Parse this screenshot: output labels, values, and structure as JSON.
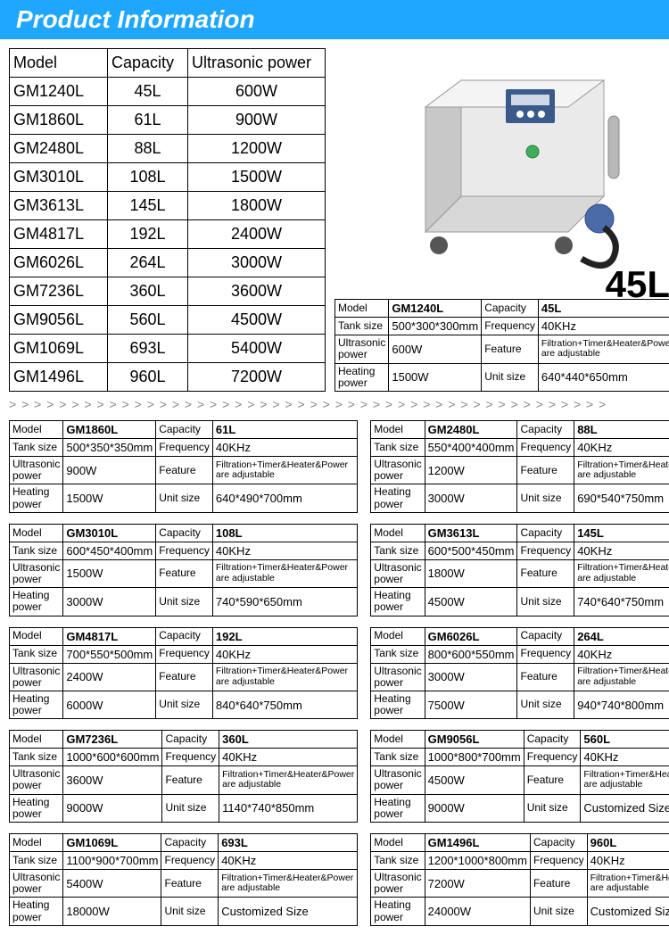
{
  "banner": {
    "title": "Product Information"
  },
  "colors": {
    "banner_bg": "#1fa6ff",
    "banner_text": "#ffffff",
    "border": "#000000"
  },
  "main_table": {
    "columns": [
      "Model",
      "Capacity",
      "Ultrasonic power"
    ],
    "col_widths": [
      "110px",
      "90px",
      "auto"
    ],
    "rows": [
      [
        "GM1240L",
        "45L",
        "600W"
      ],
      [
        "GM1860L",
        "61L",
        "900W"
      ],
      [
        "GM2480L",
        "88L",
        "1200W"
      ],
      [
        "GM3010L",
        "108L",
        "1500W"
      ],
      [
        "GM3613L",
        "145L",
        "1800W"
      ],
      [
        "GM4817L",
        "192L",
        "2400W"
      ],
      [
        "GM6026L",
        "264L",
        "3000W"
      ],
      [
        "GM7236L",
        "360L",
        "3600W"
      ],
      [
        "GM9056L",
        "560L",
        "4500W"
      ],
      [
        "GM1069L",
        "693L",
        "5400W"
      ],
      [
        "GM1496L",
        "960L",
        "7200W"
      ]
    ]
  },
  "featured": {
    "capacity_label": "45L",
    "spec": {
      "model": "GM1240L",
      "capacity": "45L",
      "tank_size": "500*300*300mm",
      "frequency": "40KHz",
      "ultrasonic_power": "600W",
      "feature": "Filtration+Timer&Heater&Power are adjustable",
      "heating_power": "1500W",
      "unit_size": "640*440*650mm"
    }
  },
  "spec_labels": {
    "model": "Model",
    "capacity": "Capacity",
    "tank_size": "Tank size",
    "frequency": "Frequency",
    "ultrasonic_power": "Ultrasonic power",
    "feature": "Feature",
    "heating_power": "Heating power",
    "unit_size": "Unit size"
  },
  "divider_char": ">",
  "specs": [
    {
      "model": "GM1860L",
      "capacity": "61L",
      "tank_size": "500*350*350mm",
      "frequency": "40KHz",
      "ultrasonic_power": "900W",
      "feature": "Filtration+Timer&Heater&Power are adjustable",
      "heating_power": "1500W",
      "unit_size": "640*490*700mm"
    },
    {
      "model": "GM2480L",
      "capacity": "88L",
      "tank_size": "550*400*400mm",
      "frequency": "40KHz",
      "ultrasonic_power": "1200W",
      "feature": "Filtration+Timer&Heater&Power are adjustable",
      "heating_power": "3000W",
      "unit_size": "690*540*750mm"
    },
    {
      "model": "GM3010L",
      "capacity": "108L",
      "tank_size": "600*450*400mm",
      "frequency": "40KHz",
      "ultrasonic_power": "1500W",
      "feature": "Filtration+Timer&Heater&Power are adjustable",
      "heating_power": "3000W",
      "unit_size": "740*590*650mm"
    },
    {
      "model": "GM3613L",
      "capacity": "145L",
      "tank_size": "600*500*450mm",
      "frequency": "40KHz",
      "ultrasonic_power": "1800W",
      "feature": "Filtration+Timer&Heater&Power are adjustable",
      "heating_power": "4500W",
      "unit_size": "740*640*750mm"
    },
    {
      "model": "GM4817L",
      "capacity": "192L",
      "tank_size": "700*550*500mm",
      "frequency": "40KHz",
      "ultrasonic_power": "2400W",
      "feature": "Filtration+Timer&Heater&Power are adjustable",
      "heating_power": "6000W",
      "unit_size": "840*640*750mm"
    },
    {
      "model": "GM6026L",
      "capacity": "264L",
      "tank_size": "800*600*550mm",
      "frequency": "40KHz",
      "ultrasonic_power": "3000W",
      "feature": "Filtration+Timer&Heater&Power are adjustable",
      "heating_power": "7500W",
      "unit_size": "940*740*800mm"
    },
    {
      "model": "GM7236L",
      "capacity": "360L",
      "tank_size": "1000*600*600mm",
      "frequency": "40KHz",
      "ultrasonic_power": "3600W",
      "feature": "Filtration+Timer&Heater&Power are adjustable",
      "heating_power": "9000W",
      "unit_size": "1140*740*850mm"
    },
    {
      "model": "GM9056L",
      "capacity": "560L",
      "tank_size": "1000*800*700mm",
      "frequency": "40KHz",
      "ultrasonic_power": "4500W",
      "feature": "Filtration+Timer&Heater&Power are adjustable",
      "heating_power": "9000W",
      "unit_size": "Customized Size"
    },
    {
      "model": "GM1069L",
      "capacity": "693L",
      "tank_size": "1100*900*700mm",
      "frequency": "40KHz",
      "ultrasonic_power": "5400W",
      "feature": "Filtration+Timer&Heater&Power are adjustable",
      "heating_power": "18000W",
      "unit_size": "Customized Size"
    },
    {
      "model": "GM1496L",
      "capacity": "960L",
      "tank_size": "1200*1000*800mm",
      "frequency": "40KHz",
      "ultrasonic_power": "7200W",
      "feature": "Filtration+Timer&Heater&Power are adjustable",
      "heating_power": "24000W",
      "unit_size": "Customized Size"
    }
  ]
}
